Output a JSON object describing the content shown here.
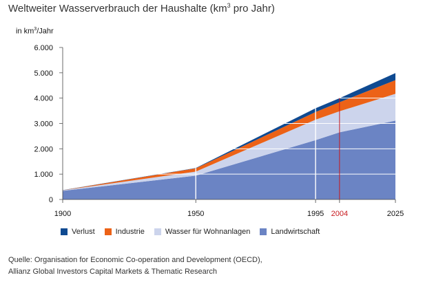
{
  "title_main": "Weltweiter Wasserverbrauch der Haushalte (km",
  "title_sup": "3",
  "title_tail": " pro Jahr)",
  "yunit_pre": "in km",
  "yunit_sup": "3",
  "yunit_post": "/Jahr",
  "source_line1": "Quelle: Organisation for Economic Co-operation and Development (OECD),",
  "source_line2": "Allianz Global Investors Capital Markets & Thematic Research",
  "chart_data": {
    "type": "area",
    "stacked": true,
    "x": [
      1900,
      1950,
      1995,
      2004,
      2025
    ],
    "x_ticks": [
      1900,
      1950,
      1995,
      2004,
      2025
    ],
    "x_tick_labels": [
      "1900",
      "1950",
      "1995",
      "2004",
      "2025"
    ],
    "highlight_x": 2004,
    "y_ticks": [
      0,
      1000,
      2000,
      3000,
      4000,
      5000,
      6000
    ],
    "y_tick_labels": [
      "0",
      "1.000",
      "2.000",
      "3.000",
      "4.000",
      "5.000",
      "6.000"
    ],
    "ylim": [
      0,
      6000
    ],
    "xlim": [
      1900,
      2025
    ],
    "legend_position": "bottom",
    "series": [
      {
        "name": "Landwirtschaft",
        "color": "#6b84c4",
        "values": [
          340,
          940,
          2340,
          2650,
          3110
        ]
      },
      {
        "name": "Wasser für Wohnanlagen",
        "color": "#ccd4ec",
        "values": [
          20,
          160,
          810,
          830,
          1060
        ]
      },
      {
        "name": "Industrie",
        "color": "#ec6217",
        "values": [
          5,
          130,
          300,
          360,
          540
        ]
      },
      {
        "name": "Verlust",
        "color": "#0f4a91",
        "values": [
          5,
          10,
          150,
          160,
          280
        ]
      }
    ],
    "legend_order": [
      "Verlust",
      "Industrie",
      "Wasser für Wohnanlagen",
      "Landwirtschaft"
    ],
    "highlight_color": "#c8191e",
    "gridline_color": "#ffffff"
  }
}
